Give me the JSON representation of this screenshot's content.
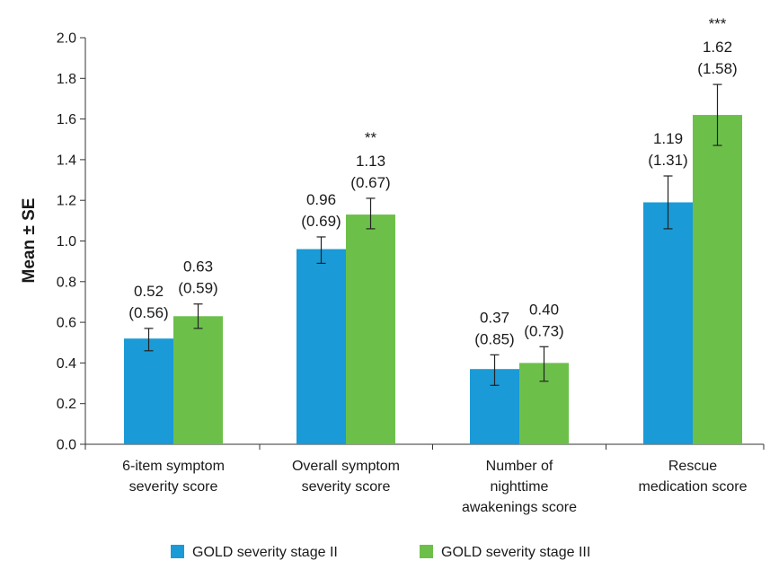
{
  "chart_data": {
    "type": "bar",
    "title": "",
    "xlabel": "",
    "ylabel": "Mean ± SE",
    "ylim": [
      0,
      2.0
    ],
    "yticks": [
      "0.0",
      "0.2",
      "0.4",
      "0.6",
      "0.8",
      "1.0",
      "1.2",
      "1.4",
      "1.6",
      "1.8",
      "2.0"
    ],
    "grid": false,
    "legend_position": "bottom",
    "categories": [
      [
        "6-item symptom",
        "severity score"
      ],
      [
        "Overall symptom",
        "severity score"
      ],
      [
        "Number of",
        "nighttime",
        "awakenings score"
      ],
      [
        "Rescue",
        "medication score"
      ]
    ],
    "series": [
      {
        "name": "GOLD severity stage II",
        "color": "#1a9ad6",
        "values": [
          0.52,
          0.96,
          0.37,
          1.19
        ],
        "se_low": [
          0.46,
          0.89,
          0.29,
          1.06
        ],
        "se_high": [
          0.57,
          1.02,
          0.44,
          1.32
        ],
        "labels": [
          [
            "0.52",
            "(0.56)"
          ],
          [
            "0.96",
            "(0.69)"
          ],
          [
            "0.37",
            "(0.85)"
          ],
          [
            "1.19",
            "(1.31)"
          ]
        ]
      },
      {
        "name": "GOLD severity stage III",
        "color": "#6cc04a",
        "values": [
          0.63,
          1.13,
          0.4,
          1.62
        ],
        "se_low": [
          0.57,
          1.06,
          0.31,
          1.47
        ],
        "se_high": [
          0.69,
          1.21,
          0.48,
          1.77
        ],
        "labels": [
          [
            "0.63",
            "(0.59)"
          ],
          [
            "1.13",
            "(0.67)"
          ],
          [
            "0.40",
            "(0.73)"
          ],
          [
            "1.62",
            "(1.58)"
          ]
        ]
      }
    ],
    "significance": [
      "",
      "**",
      "",
      "***"
    ]
  }
}
